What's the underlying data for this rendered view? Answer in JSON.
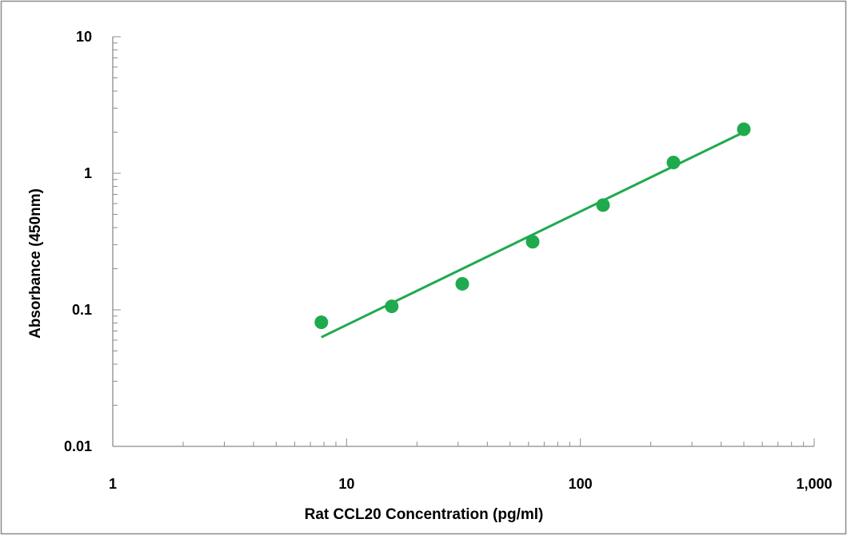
{
  "chart_data": {
    "type": "scatter",
    "title": "",
    "xlabel": "Rat CCL20 Concentration (pg/ml)",
    "ylabel": "Absorbance (450nm)",
    "x_scale": "log",
    "y_scale": "log",
    "xlim": [
      1,
      1000
    ],
    "ylim": [
      0.01,
      10
    ],
    "x_ticks": [
      1,
      10,
      100,
      1000
    ],
    "x_tick_labels": [
      "1",
      "10",
      "100",
      "1,000"
    ],
    "y_ticks": [
      0.01,
      0.1,
      1,
      10
    ],
    "y_tick_labels": [
      "0.01",
      "0.1",
      "1",
      "10"
    ],
    "grid": false,
    "legend": "none",
    "series": [
      {
        "x": [
          7.8,
          15.6,
          31.25,
          62.5,
          125,
          250,
          500
        ],
        "y": [
          0.081,
          0.106,
          0.155,
          0.315,
          0.585,
          1.2,
          2.1
        ],
        "color": "#1faa4e"
      }
    ],
    "trendline": {
      "type": "power",
      "x": [
        7.8,
        500
      ],
      "y": [
        0.063,
        2.0
      ],
      "color": "#1faa4e"
    }
  }
}
